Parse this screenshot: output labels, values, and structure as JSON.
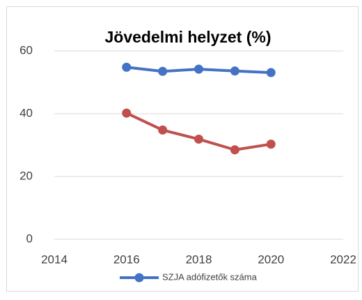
{
  "chart_data": {
    "type": "line",
    "title": "Jövedelmi helyzet (%)",
    "x": [
      2016,
      2017,
      2018,
      2019,
      2020
    ],
    "series": [
      {
        "name": "SZJA adófizetők száma",
        "color": "#4472c4",
        "values": [
          54.8,
          53.5,
          54.2,
          53.6,
          53.1
        ]
      },
      {
        "color": "#c0504d",
        "values": [
          40.2,
          34.8,
          31.9,
          28.5,
          30.3
        ]
      }
    ],
    "xlim": [
      2014,
      2022
    ],
    "xticks": [
      2014,
      2016,
      2018,
      2020,
      2022
    ],
    "ylim": [
      0,
      60
    ],
    "yticks": [
      0,
      20,
      40,
      60
    ],
    "grid": true,
    "legend": "bottom"
  }
}
